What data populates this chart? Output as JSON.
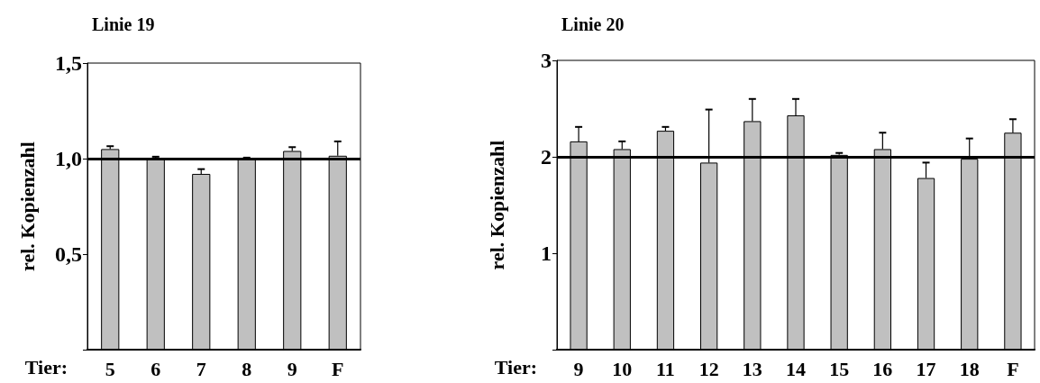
{
  "chart_data": [
    {
      "type": "bar",
      "title": "Linie 19",
      "xlabel": "Tier:",
      "ylabel": "rel. Kopienzahl",
      "categories": [
        "5",
        "6",
        "7",
        "8",
        "9",
        "F"
      ],
      "series": [
        {
          "color": "#c0c0c0",
          "values": [
            1.05,
            1.0,
            0.92,
            1.0,
            1.04,
            1.015
          ],
          "errors": [
            [
              1.05,
              1.065
            ],
            [
              1.0,
              1.01
            ],
            [
              0.92,
              0.945
            ],
            [
              1.0,
              1.005
            ],
            [
              1.04,
              1.06
            ],
            [
              1.015,
              1.09
            ]
          ]
        }
      ],
      "ylim": [
        0,
        1.5
      ],
      "yticks": [
        {
          "value": 0,
          "label": null
        },
        {
          "value": 0.5,
          "label": "0,5"
        },
        {
          "value": 1,
          "label": "1,0"
        },
        {
          "value": 1.5,
          "label": "1,5"
        }
      ],
      "ref_lines": [
        {
          "axis": "y",
          "value": 1,
          "color": "#000000"
        }
      ],
      "grid": false
    },
    {
      "type": "bar",
      "title": "Linie 20",
      "xlabel": "Tier:",
      "ylabel": "rel. Kopienzahl",
      "categories": [
        "9",
        "10",
        "11",
        "12",
        "13",
        "14",
        "15",
        "16",
        "17",
        "18",
        "F"
      ],
      "series": [
        {
          "color": "#c0c0c0",
          "values": [
            2.16,
            2.08,
            2.27,
            1.94,
            2.37,
            2.43,
            2.02,
            2.08,
            1.78,
            1.98,
            2.25
          ],
          "errors": [
            [
              2.16,
              2.31
            ],
            [
              2.08,
              2.16
            ],
            [
              2.27,
              2.31
            ],
            [
              1.94,
              2.49
            ],
            [
              2.37,
              2.6
            ],
            [
              2.43,
              2.6
            ],
            [
              2.02,
              2.04
            ],
            [
              2.08,
              2.25
            ],
            [
              1.78,
              1.94
            ],
            [
              1.98,
              2.19
            ],
            [
              2.25,
              2.39
            ]
          ]
        }
      ],
      "ylim": [
        0,
        3
      ],
      "yticks": [
        {
          "value": 0,
          "label": null
        },
        1,
        2,
        3
      ],
      "ref_lines": [
        {
          "axis": "y",
          "value": 2,
          "color": "#000000"
        }
      ],
      "grid": false
    }
  ]
}
